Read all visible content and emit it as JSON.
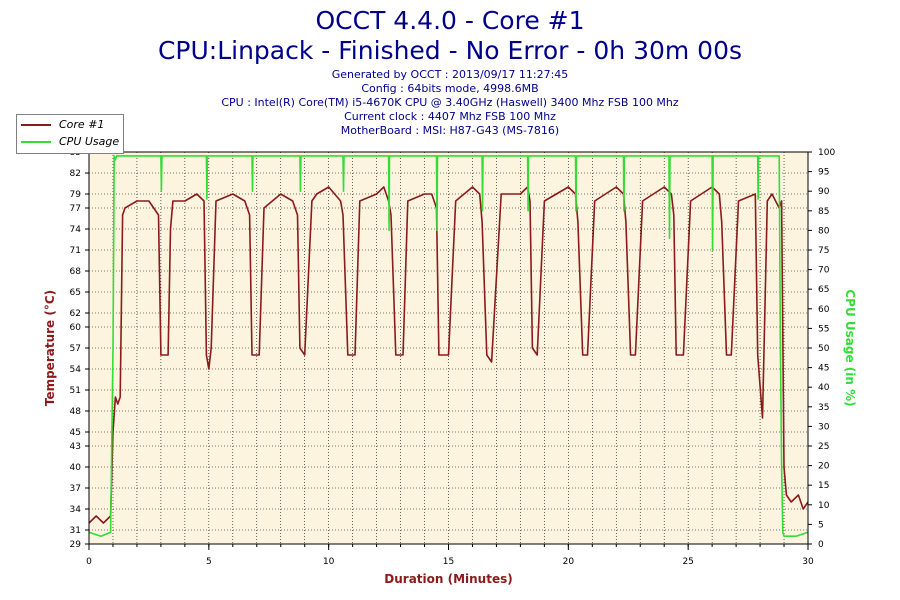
{
  "header": {
    "title_line1": "OCCT 4.4.0 - Core #1",
    "title_line2": "CPU:Linpack - Finished - No Error - 0h 30m 00s",
    "generated": "Generated by OCCT : 2013/09/17 11:27:45",
    "config": "Config : 64bits mode, 4998.6MB",
    "cpu": "CPU : Intel(R) Core(TM) i5-4670K CPU @ 3.40GHz (Haswell) 3400 Mhz FSB 100 Mhz",
    "clock": "Current clock : 4407 Mhz FSB 100 Mhz",
    "motherboard": "MotherBoard : MSI: H87-G43 (MS-7816)"
  },
  "legend": {
    "items": [
      {
        "label": "Core #1",
        "color": "#8b1a1a"
      },
      {
        "label": "CPU Usage",
        "color": "#33dd33"
      }
    ]
  },
  "colors": {
    "plot_bg": "#fdf4e0",
    "temp": "#8b1a1a",
    "usage": "#33dd33",
    "title": "#00008b",
    "temp_axis": "#8b1a1a",
    "usage_axis": "#33dd33"
  },
  "chart_data": {
    "type": "line",
    "title": "OCCT 4.4.0 - Core #1",
    "xlabel": "Duration (Minutes)",
    "ylabel": "Temperature (°C)",
    "y2label": "CPU Usage (in %)",
    "xlim": [
      0,
      30
    ],
    "ylim": [
      29,
      85
    ],
    "y2lim": [
      0,
      100
    ],
    "grid": true,
    "x_ticks": [
      0,
      5,
      10,
      15,
      20,
      25,
      30
    ],
    "y_ticks": [
      29,
      31,
      34,
      37,
      40,
      43,
      45,
      48,
      51,
      54,
      57,
      60,
      62,
      65,
      68,
      71,
      74,
      77,
      79,
      82,
      85
    ],
    "y2_ticks": [
      0,
      5,
      10,
      15,
      20,
      25,
      30,
      35,
      40,
      45,
      50,
      55,
      60,
      65,
      70,
      75,
      80,
      85,
      90,
      95,
      100
    ],
    "series": [
      {
        "name": "Core #1",
        "axis": "left",
        "x": [
          0,
          0.3,
          0.6,
          0.9,
          1.0,
          1.1,
          1.2,
          1.3,
          1.4,
          1.5,
          2.0,
          2.5,
          2.9,
          3.0,
          3.05,
          3.3,
          3.4,
          3.5,
          4.0,
          4.5,
          4.8,
          4.9,
          5.0,
          5.1,
          5.3,
          6.0,
          6.5,
          6.7,
          6.8,
          7.1,
          7.3,
          8.0,
          8.5,
          8.7,
          8.8,
          9.0,
          9.3,
          9.5,
          10.0,
          10.5,
          10.6,
          10.8,
          11.1,
          11.3,
          12.0,
          12.3,
          12.5,
          12.6,
          12.8,
          13.1,
          13.3,
          14.0,
          14.3,
          14.5,
          14.6,
          15.0,
          15.3,
          16.0,
          16.3,
          16.4,
          16.6,
          16.8,
          17.2,
          18.0,
          18.3,
          18.4,
          18.5,
          18.7,
          19.0,
          20.0,
          20.3,
          20.4,
          20.6,
          20.8,
          21.1,
          22.0,
          22.3,
          22.4,
          22.6,
          22.8,
          23.1,
          24.0,
          24.3,
          24.4,
          24.5,
          24.8,
          25.1,
          26.0,
          26.3,
          26.4,
          26.6,
          26.8,
          27.1,
          27.8,
          27.9,
          28.1,
          28.3,
          28.5,
          28.8,
          28.9,
          29.0,
          29.1,
          29.3,
          29.6,
          29.8,
          30.0
        ],
        "values": [
          32,
          33,
          32,
          33,
          45,
          50,
          49,
          50,
          76,
          77,
          78,
          78,
          76,
          56,
          56,
          56,
          74,
          78,
          78,
          79,
          78,
          56,
          54,
          57,
          78,
          79,
          78,
          76,
          56,
          56,
          77,
          79,
          78,
          76,
          57,
          56,
          78,
          79,
          80,
          78,
          76,
          56,
          56,
          78,
          79,
          80,
          78,
          76,
          56,
          56,
          78,
          79,
          79,
          77,
          56,
          56,
          78,
          80,
          79,
          75,
          56,
          55,
          79,
          79,
          80,
          78,
          57,
          56,
          78,
          80,
          79,
          75,
          56,
          56,
          78,
          80,
          79,
          75,
          56,
          56,
          78,
          80,
          79,
          76,
          56,
          56,
          78,
          80,
          79,
          75,
          56,
          56,
          78,
          79,
          56,
          47,
          78,
          79,
          77,
          78,
          40,
          36,
          35,
          36,
          34,
          35
        ]
      },
      {
        "name": "CPU Usage",
        "axis": "right",
        "x": [
          0,
          0.5,
          0.9,
          1.0,
          1.05,
          1.1,
          1.15,
          3.0,
          3.02,
          3.04,
          3.06,
          4.9,
          4.92,
          4.94,
          4.96,
          6.8,
          6.82,
          6.84,
          6.86,
          8.8,
          8.82,
          8.84,
          8.86,
          10.6,
          10.62,
          10.64,
          10.66,
          12.5,
          12.52,
          12.54,
          12.56,
          14.5,
          14.52,
          14.54,
          14.56,
          16.4,
          16.42,
          16.44,
          16.46,
          18.3,
          18.32,
          18.34,
          18.36,
          20.3,
          20.32,
          20.34,
          20.36,
          22.3,
          22.32,
          22.34,
          22.36,
          24.2,
          24.22,
          24.24,
          24.26,
          26.0,
          26.02,
          26.04,
          26.06,
          27.9,
          27.92,
          27.94,
          27.96,
          28.8,
          28.85,
          28.9,
          28.95,
          29.0,
          29.5,
          30.0
        ],
        "values": [
          3,
          2,
          3,
          50,
          99,
          98,
          99,
          99,
          90,
          99,
          99,
          99,
          88,
          99,
          99,
          99,
          90,
          99,
          99,
          99,
          90,
          99,
          99,
          99,
          90,
          99,
          99,
          99,
          80,
          99,
          99,
          99,
          80,
          99,
          99,
          99,
          85,
          99,
          99,
          99,
          85,
          99,
          99,
          99,
          85,
          99,
          99,
          99,
          85,
          99,
          99,
          99,
          78,
          99,
          99,
          99,
          75,
          99,
          99,
          99,
          88,
          99,
          99,
          99,
          50,
          20,
          3,
          2,
          2,
          3
        ]
      }
    ]
  }
}
